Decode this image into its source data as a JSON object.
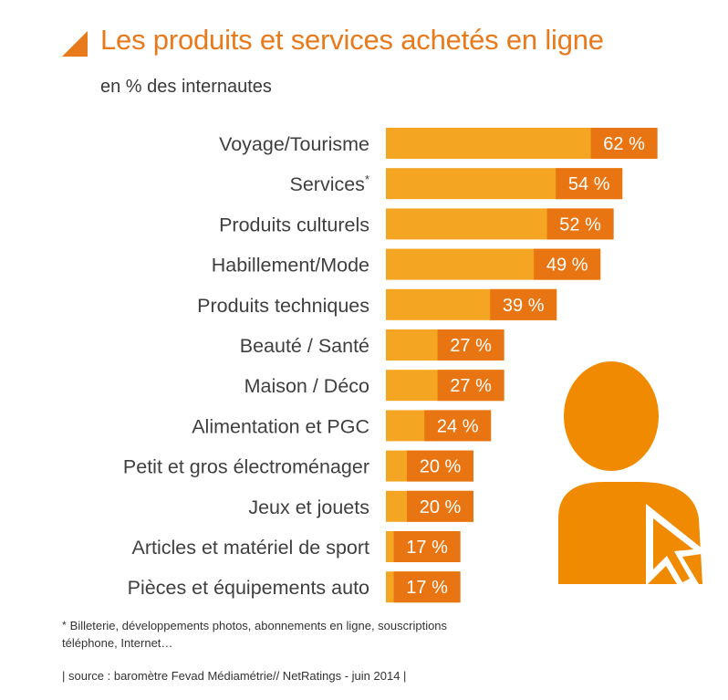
{
  "title": "Les produits et services achetés en ligne",
  "subtitle": "en % des internautes",
  "footnote_marker": "*",
  "footnote": "Billeterie, développements photos, abonnements en ligne, souscriptions téléphone, Internet…",
  "source": "| source : baromètre Fevad Médiamétrie// NetRatings - juin 2014 |",
  "colors": {
    "bar_light": "#f4a623",
    "bar_dark": "#e87511",
    "title": "#e97a1c",
    "label": "#3f3f3f",
    "icon": "#f08a00"
  },
  "icons": [
    "title-triangle-icon",
    "user-cursor-icon"
  ],
  "chart_data": {
    "type": "bar",
    "orientation": "horizontal",
    "categories": [
      "Voyage/Tourisme",
      "Services*",
      "Produits culturels",
      "Habillement/Mode",
      "Produits techniques",
      "Beauté / Santé",
      "Maison / Déco",
      "Alimentation et PGC",
      "Petit et gros électroménager",
      "Jeux et jouets",
      "Articles et matériel de sport",
      "Pièces et équipements auto"
    ],
    "values": [
      62,
      54,
      52,
      49,
      39,
      27,
      27,
      24,
      20,
      20,
      17,
      17
    ],
    "value_labels": [
      "62 %",
      "54 %",
      "52 %",
      "49 %",
      "39 %",
      "27 %",
      "27 %",
      "24 %",
      "20 %",
      "20 %",
      "17 %",
      "17 %"
    ],
    "unit": "%",
    "grid": false,
    "legend": "none"
  }
}
